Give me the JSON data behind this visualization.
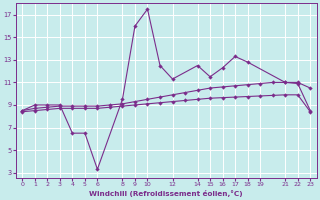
{
  "xlabel": "Windchill (Refroidissement éolien,°C)",
  "bg_color": "#c8ecec",
  "line_color": "#7b2d8b",
  "grid_color": "#ffffff",
  "x_ticks": [
    0,
    1,
    2,
    3,
    4,
    5,
    6,
    8,
    9,
    10,
    12,
    14,
    15,
    16,
    17,
    18,
    19,
    21,
    22,
    23
  ],
  "xlim": [
    -0.5,
    23.5
  ],
  "ylim": [
    2.5,
    18.0
  ],
  "y_ticks": [
    3,
    5,
    7,
    9,
    11,
    13,
    15,
    17
  ],
  "curve_top_x": [
    0,
    1,
    2,
    3,
    4,
    5,
    6,
    8,
    9,
    10,
    11,
    12,
    14,
    15,
    16,
    17,
    18,
    21,
    22,
    23
  ],
  "curve_top_y": [
    8.5,
    9.0,
    9.0,
    9.0,
    6.5,
    6.5,
    3.3,
    9.5,
    16.0,
    17.5,
    12.5,
    11.3,
    12.5,
    11.5,
    12.3,
    13.3,
    12.8,
    11.0,
    11.0,
    10.5
  ],
  "curve_mid_x": [
    0,
    1,
    2,
    3,
    4,
    5,
    6,
    7,
    8,
    9,
    10,
    11,
    12,
    13,
    14,
    15,
    16,
    17,
    18,
    19,
    20,
    21,
    22,
    23
  ],
  "curve_mid_y": [
    8.5,
    8.7,
    8.8,
    8.9,
    8.9,
    8.9,
    8.9,
    9.0,
    9.1,
    9.3,
    9.5,
    9.7,
    9.9,
    10.1,
    10.3,
    10.5,
    10.6,
    10.7,
    10.8,
    10.9,
    11.0,
    11.0,
    10.9,
    8.5
  ],
  "curve_bot_x": [
    0,
    1,
    2,
    3,
    4,
    5,
    6,
    7,
    8,
    9,
    10,
    11,
    12,
    13,
    14,
    15,
    16,
    17,
    18,
    19,
    20,
    21,
    22,
    23
  ],
  "curve_bot_y": [
    8.4,
    8.5,
    8.6,
    8.7,
    8.7,
    8.7,
    8.7,
    8.8,
    8.9,
    9.0,
    9.1,
    9.2,
    9.3,
    9.4,
    9.5,
    9.6,
    9.65,
    9.7,
    9.75,
    9.8,
    9.85,
    9.9,
    9.9,
    8.4
  ]
}
